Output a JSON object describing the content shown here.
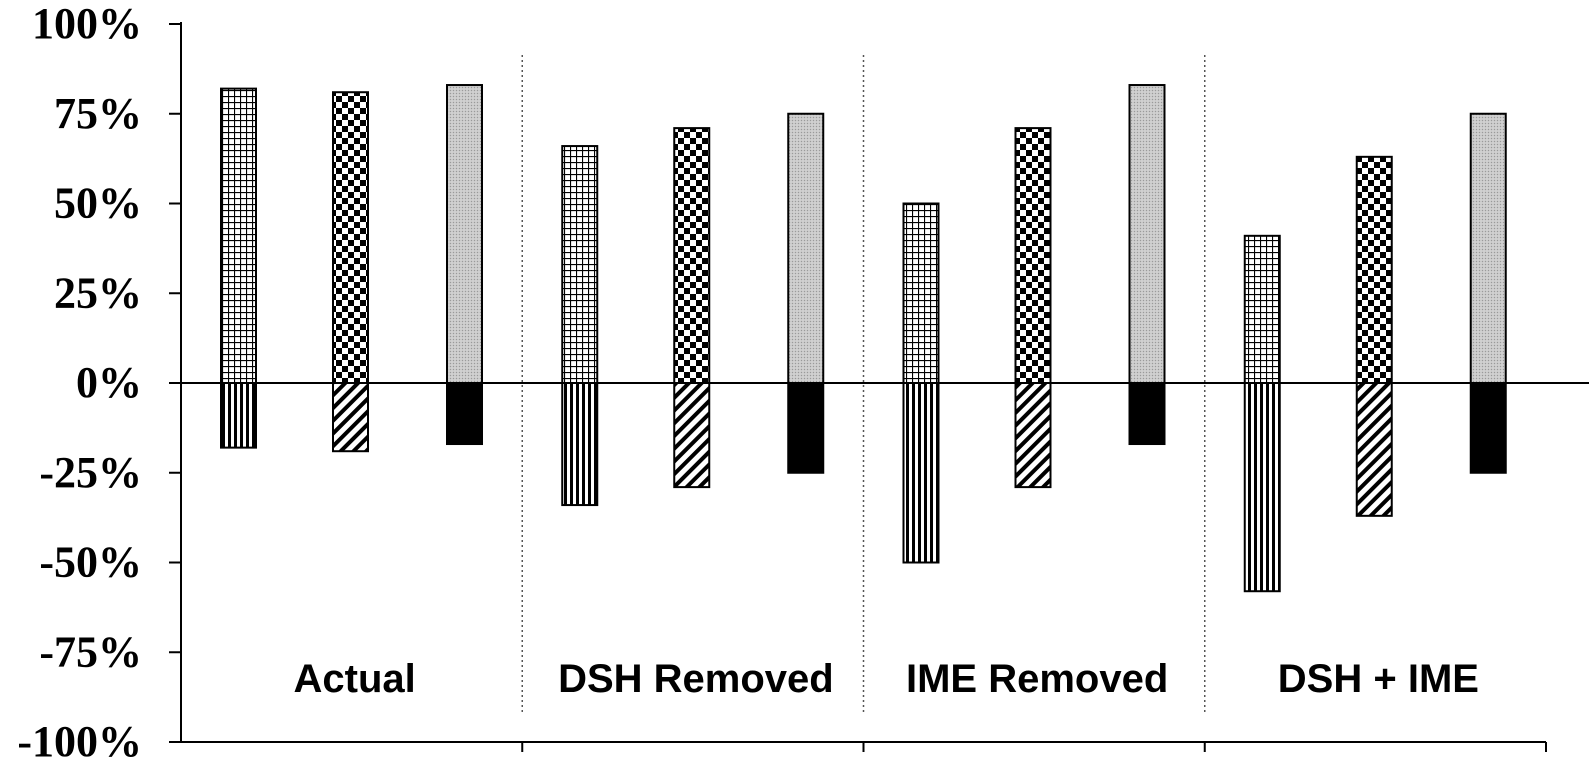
{
  "chart_data": {
    "type": "bar",
    "categories": [
      "Actual",
      "DSH Removed",
      "IME Removed",
      "DSH + IME"
    ],
    "series": [
      {
        "pattern": "grid",
        "values": [
          82,
          66,
          50,
          41
        ]
      },
      {
        "pattern": "checker",
        "values": [
          81,
          71,
          71,
          63
        ]
      },
      {
        "pattern": "gray",
        "values": [
          83,
          75,
          83,
          75
        ]
      },
      {
        "pattern": "vertical-stripes",
        "values": [
          -18,
          -34,
          -50,
          -58
        ]
      },
      {
        "pattern": "diagonal-stripes",
        "values": [
          -19,
          -29,
          -29,
          -37
        ]
      },
      {
        "pattern": "solid-black",
        "values": [
          -17,
          -25,
          -17,
          -25
        ]
      }
    ],
    "positive_series": [
      0,
      1,
      2
    ],
    "negative_series": [
      3,
      4,
      5
    ],
    "ylim": [
      -100,
      100
    ],
    "yticks": [
      100,
      75,
      50,
      25,
      0,
      -25,
      -50,
      -75,
      -100
    ],
    "ytick_labels": [
      "100%",
      "75%",
      "50%",
      "25%",
      "0%",
      "-25%",
      "-50%",
      "-75%",
      "-100%"
    ],
    "group_separators": "dotted vertical lines",
    "grid": false,
    "legend": "none"
  }
}
